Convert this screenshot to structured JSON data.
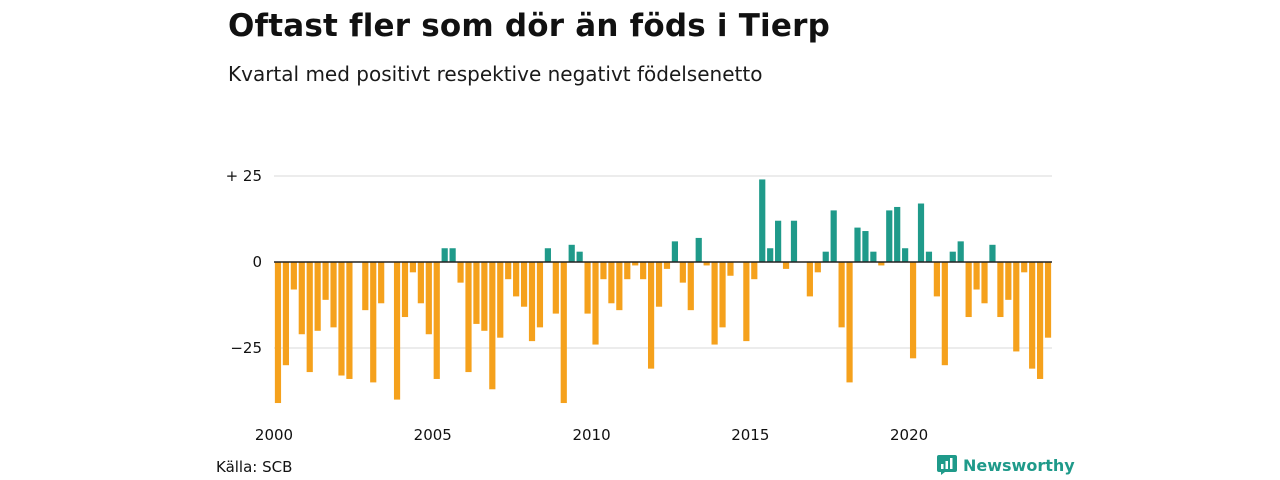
{
  "header": {
    "title": "Oftast fler som dör än föds i Tierp",
    "subtitle": "Kvartal med positivt respektive negativt födelsenetto"
  },
  "footer": {
    "source": "Källa: SCB",
    "brand": "Newsworthy"
  },
  "colors": {
    "positive": "#1f9a8a",
    "negative": "#f5a11c",
    "grid": "#d9d9d9",
    "zero_line": "#222222"
  },
  "chart_data": {
    "type": "bar",
    "unit": "quarter",
    "x_start": "2000-Q1",
    "x_ticks": [
      "2000",
      "2005",
      "2010",
      "2015",
      "2020"
    ],
    "y_ticks": [
      {
        "value": 25,
        "label": "+ 25"
      },
      {
        "value": 0,
        "label": "0"
      },
      {
        "value": -25,
        "label": "−25"
      }
    ],
    "ylim": [
      -41,
      25
    ],
    "grid": true,
    "values": [
      -41,
      -30,
      -8,
      -21,
      -32,
      -20,
      -11,
      -19,
      -33,
      -34,
      0,
      -14,
      -35,
      -12,
      0,
      -40,
      -16,
      -3,
      -12,
      -21,
      -34,
      4,
      4,
      -6,
      -32,
      -18,
      -20,
      -37,
      -22,
      -5,
      -10,
      -13,
      -23,
      -19,
      4,
      -15,
      -41,
      5,
      3,
      -15,
      -24,
      -5,
      -12,
      -14,
      -5,
      -1,
      -5,
      -31,
      -13,
      -2,
      6,
      -6,
      -14,
      7,
      -1,
      -24,
      -19,
      -4,
      0,
      -23,
      -5,
      24,
      4,
      12,
      -2,
      12,
      0,
      -10,
      -3,
      3,
      15,
      -19,
      -35,
      10,
      9,
      3,
      -1,
      15,
      16,
      4,
      -28,
      17,
      3,
      -10,
      -30,
      3,
      6,
      -16,
      -8,
      -12,
      5,
      -16,
      -11,
      -26,
      -3,
      -31,
      -34,
      -22
    ]
  }
}
